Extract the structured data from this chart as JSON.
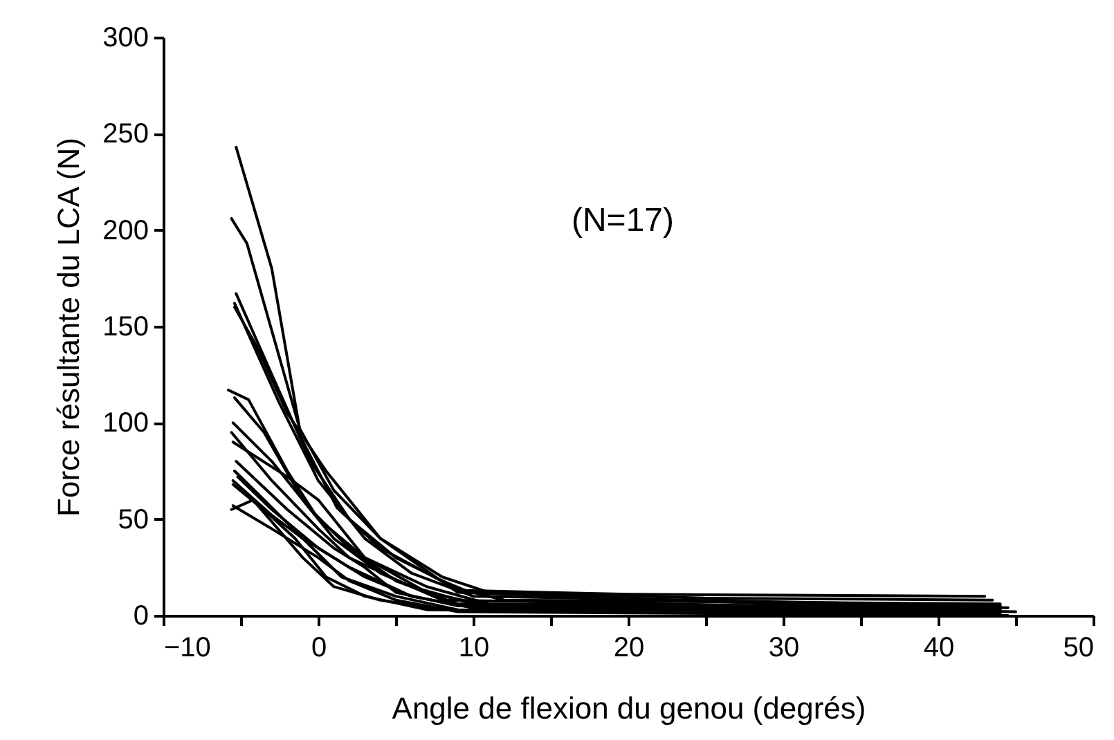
{
  "chart_data": {
    "type": "line",
    "xlabel": "Angle de flexion du genou (degrés)",
    "ylabel": "Force résultante du LCA (N)",
    "annotations": [
      "(N=17)"
    ],
    "xlim": [
      -10,
      50
    ],
    "xticks": [
      {
        "value": -10,
        "label": "−10"
      },
      {
        "value": -5,
        "label": null
      },
      0,
      {
        "value": 5,
        "label": null
      },
      10,
      {
        "value": 15,
        "label": null
      },
      20,
      {
        "value": 25,
        "label": null
      },
      30,
      {
        "value": 35,
        "label": null
      },
      40,
      {
        "value": 45,
        "label": null
      },
      50
    ],
    "ylim": [
      0,
      300
    ],
    "yticks": [
      0,
      50,
      100,
      150,
      200,
      250,
      300
    ],
    "legend": false,
    "line_style": "solid",
    "marker": "none",
    "series": [
      {
        "color": "#000000",
        "x": [
          -5.3,
          -3,
          -1.1,
          1.2,
          4,
          7.7,
          9.5,
          20,
          43
        ],
        "values": [
          243,
          180,
          92,
          56,
          35,
          19,
          13,
          11,
          10
        ]
      },
      {
        "color": "#000000",
        "x": [
          -5.6,
          -4.6,
          -1.2,
          1,
          4,
          8,
          11,
          25,
          43.5
        ],
        "values": [
          206,
          193,
          97,
          65,
          40,
          20,
          12,
          9,
          8
        ]
      },
      {
        "color": "#000000",
        "x": [
          -5.3,
          -3,
          -0.5,
          2,
          5,
          9,
          12,
          44
        ],
        "values": [
          167,
          125,
          80,
          50,
          30,
          14,
          8,
          6
        ]
      },
      {
        "color": "#000000",
        "x": [
          -5.4,
          -2.5,
          0,
          3,
          6,
          10,
          44
        ],
        "values": [
          162,
          110,
          70,
          40,
          22,
          10,
          5
        ]
      },
      {
        "color": "#000000",
        "x": [
          -5.4,
          -4,
          -2,
          0.5,
          4,
          9,
          30,
          44
        ],
        "values": [
          160,
          140,
          105,
          75,
          40,
          12,
          6,
          5
        ]
      },
      {
        "color": "#000000",
        "x": [
          -5.8,
          -4.5,
          -2,
          0,
          3,
          7,
          11,
          44.5
        ],
        "values": [
          117,
          112,
          75,
          50,
          30,
          15,
          6,
          4
        ]
      },
      {
        "color": "#000000",
        "x": [
          -5.4,
          -3.5,
          -1,
          1,
          4,
          8,
          44
        ],
        "values": [
          113,
          95,
          60,
          40,
          22,
          8,
          3
        ]
      },
      {
        "color": "#000000",
        "x": [
          -5.5,
          -3,
          -0.5,
          2,
          5,
          9,
          45
        ],
        "values": [
          100,
          80,
          55,
          35,
          18,
          6,
          2
        ]
      },
      {
        "color": "#000000",
        "x": [
          -5.6,
          -3,
          0,
          2,
          6,
          10,
          43
        ],
        "values": [
          95,
          70,
          45,
          30,
          15,
          6,
          4
        ]
      },
      {
        "color": "#000000",
        "x": [
          -5.5,
          -2,
          0,
          3,
          7,
          11,
          44
        ],
        "values": [
          90,
          72,
          60,
          30,
          12,
          5,
          3
        ]
      },
      {
        "color": "#000000",
        "x": [
          -5.3,
          -2,
          1,
          3,
          5,
          9,
          43
        ],
        "values": [
          80,
          55,
          35,
          25,
          12,
          5,
          2
        ]
      },
      {
        "color": "#000000",
        "x": [
          -5.4,
          -3.5,
          -1,
          2,
          6,
          10,
          44
        ],
        "values": [
          75,
          60,
          40,
          25,
          10,
          4,
          2
        ]
      },
      {
        "color": "#000000",
        "x": [
          -5.2,
          -3,
          0,
          3,
          6,
          10,
          43.5
        ],
        "values": [
          72,
          55,
          35,
          20,
          10,
          4,
          1
        ]
      },
      {
        "color": "#000000",
        "x": [
          -5.5,
          -3,
          -1,
          1.5,
          5,
          9,
          44
        ],
        "values": [
          70,
          52,
          40,
          20,
          10,
          3,
          1
        ]
      },
      {
        "color": "#000000",
        "x": [
          -5.5,
          -4,
          -1,
          1,
          4,
          8,
          43
        ],
        "values": [
          68,
          58,
          30,
          15,
          8,
          3,
          1
        ]
      },
      {
        "color": "#000000",
        "x": [
          -5.5,
          -3,
          0,
          2,
          5,
          9,
          44
        ],
        "values": [
          57,
          45,
          30,
          18,
          8,
          2,
          0
        ]
      },
      {
        "color": "#000000",
        "x": [
          -5.6,
          -4.2,
          -1.5,
          0.5,
          3,
          7,
          44.5
        ],
        "values": [
          55,
          60,
          40,
          20,
          10,
          3,
          0
        ]
      }
    ]
  }
}
